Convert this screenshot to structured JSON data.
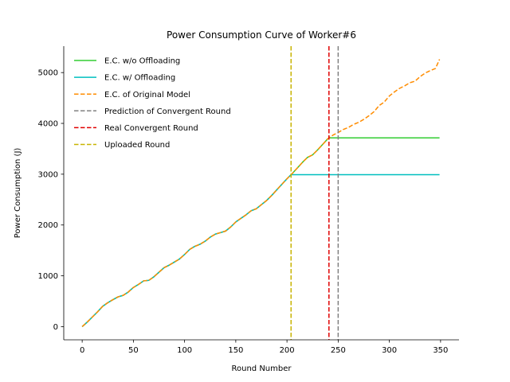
{
  "chart_data": {
    "type": "line",
    "title": "Power Consumption Curve of Worker#6",
    "xlabel": "Round Number",
    "ylabel": "Power Consumption (J)",
    "xlim": [
      -18,
      368
    ],
    "ylim": [
      -260,
      5520
    ],
    "xticks": [
      0,
      50,
      100,
      150,
      200,
      250,
      300,
      350
    ],
    "yticks": [
      0,
      1000,
      2000,
      3000,
      4000,
      5000
    ],
    "legend_position": "top-left",
    "grid": false,
    "series": [
      {
        "name": "E.C. w/o Offloading",
        "color": "#32cd32",
        "style": "solid",
        "x": [
          0,
          5,
          10,
          15,
          20,
          25,
          30,
          35,
          40,
          45,
          50,
          55,
          60,
          65,
          70,
          75,
          80,
          85,
          90,
          95,
          100,
          105,
          110,
          115,
          120,
          125,
          130,
          135,
          140,
          145,
          150,
          155,
          160,
          165,
          170,
          175,
          180,
          185,
          190,
          195,
          200,
          205,
          210,
          215,
          220,
          225,
          230,
          235,
          240,
          241,
          250,
          300,
          349
        ],
        "y": [
          0,
          90,
          190,
          290,
          400,
          470,
          530,
          585,
          615,
          680,
          770,
          830,
          900,
          910,
          980,
          1070,
          1160,
          1210,
          1270,
          1330,
          1420,
          1520,
          1580,
          1620,
          1680,
          1760,
          1820,
          1850,
          1880,
          1960,
          2060,
          2130,
          2200,
          2280,
          2320,
          2400,
          2480,
          2580,
          2690,
          2800,
          2910,
          3010,
          3120,
          3230,
          3330,
          3380,
          3480,
          3590,
          3700,
          3715,
          3715,
          3715,
          3715
        ]
      },
      {
        "name": "E.C. w/ Offloading",
        "color": "#00bfbf",
        "style": "solid",
        "x": [
          0,
          5,
          10,
          15,
          20,
          25,
          30,
          35,
          40,
          45,
          50,
          55,
          60,
          65,
          70,
          75,
          80,
          85,
          90,
          95,
          100,
          105,
          110,
          115,
          120,
          125,
          130,
          135,
          140,
          145,
          150,
          155,
          160,
          165,
          170,
          175,
          180,
          185,
          190,
          195,
          200,
          204,
          250,
          300,
          349
        ],
        "y": [
          0,
          90,
          190,
          290,
          400,
          470,
          530,
          585,
          615,
          680,
          770,
          830,
          900,
          910,
          980,
          1070,
          1160,
          1210,
          1270,
          1330,
          1420,
          1520,
          1580,
          1620,
          1680,
          1760,
          1820,
          1850,
          1880,
          1960,
          2060,
          2130,
          2200,
          2280,
          2320,
          2400,
          2480,
          2580,
          2690,
          2800,
          2910,
          2990,
          2990,
          2990,
          2990
        ]
      },
      {
        "name": "E.C. of Original Model",
        "color": "#ff8c00",
        "style": "dashed",
        "x": [
          0,
          5,
          10,
          15,
          20,
          25,
          30,
          35,
          40,
          45,
          50,
          55,
          60,
          65,
          70,
          75,
          80,
          85,
          90,
          95,
          100,
          105,
          110,
          115,
          120,
          125,
          130,
          135,
          140,
          145,
          150,
          155,
          160,
          165,
          170,
          175,
          180,
          185,
          190,
          195,
          200,
          205,
          210,
          215,
          220,
          225,
          230,
          235,
          240,
          245,
          250,
          255,
          260,
          265,
          270,
          275,
          280,
          285,
          290,
          295,
          300,
          305,
          310,
          315,
          320,
          325,
          330,
          335,
          340,
          345,
          349
        ],
        "y": [
          0,
          90,
          190,
          290,
          400,
          470,
          530,
          585,
          615,
          680,
          770,
          830,
          900,
          910,
          980,
          1070,
          1160,
          1210,
          1270,
          1330,
          1420,
          1520,
          1580,
          1620,
          1680,
          1760,
          1820,
          1850,
          1880,
          1960,
          2060,
          2130,
          2200,
          2280,
          2320,
          2400,
          2480,
          2580,
          2690,
          2800,
          2910,
          3010,
          3120,
          3230,
          3330,
          3380,
          3480,
          3590,
          3700,
          3770,
          3820,
          3880,
          3920,
          3980,
          4020,
          4080,
          4150,
          4230,
          4350,
          4420,
          4540,
          4620,
          4690,
          4740,
          4800,
          4830,
          4920,
          4990,
          5040,
          5080,
          5260
        ]
      }
    ],
    "reference_lines": [
      {
        "name": "Prediction of Convergent Round",
        "color": "#808080",
        "style": "dashed",
        "x": 250
      },
      {
        "name": "Real Convergent Round",
        "color": "#e00000",
        "style": "dashed",
        "x": 241
      },
      {
        "name": "Uploaded Round",
        "color": "#c8b400",
        "style": "dashed",
        "x": 204
      }
    ],
    "legend_order": [
      "E.C. w/o Offloading",
      "E.C. w/ Offloading",
      "E.C. of Original Model",
      "Prediction of Convergent Round",
      "Real Convergent Round",
      "Uploaded Round"
    ]
  }
}
